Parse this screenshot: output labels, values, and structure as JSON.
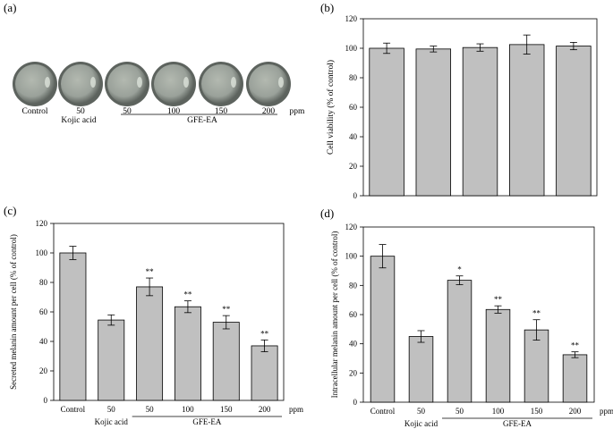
{
  "panels": {
    "a": {
      "label": "(a)",
      "dishes": [
        "Control",
        "50",
        "50",
        "100",
        "150",
        "200"
      ],
      "unit": "ppm",
      "group_kojic": "Kojic acid",
      "group_gfe": "GFE-EA",
      "colors": {
        "rim": "#5d635e",
        "center": "#b3b9b0",
        "highlight": "#e6ebe2"
      }
    }
  },
  "chart_data": [
    {
      "type": "bar",
      "panel_label": "(b)",
      "title": "",
      "xlabel": "",
      "ylabel": "Cell viability (% of control)",
      "categories": [
        "",
        "",
        "",
        "",
        ""
      ],
      "values": [
        100,
        99.5,
        100.5,
        102.5,
        101.5
      ],
      "errors": [
        3.5,
        2,
        2.5,
        6.5,
        2.5
      ],
      "significance": [
        "",
        "",
        "",
        "",
        ""
      ],
      "ylim": [
        0,
        120
      ],
      "yticks": [
        0,
        20,
        40,
        60,
        80,
        100,
        120
      ],
      "unit": "",
      "group_kojic": "",
      "group_gfe": "",
      "bar_color": "#c0c0c0"
    },
    {
      "type": "bar",
      "panel_label": "(c)",
      "title": "",
      "xlabel": "",
      "ylabel": "Secreted melanin amount per cell (% of control)",
      "categories": [
        "Control",
        "50",
        "50",
        "100",
        "150",
        "200"
      ],
      "values": [
        100,
        54.5,
        77,
        63.5,
        53,
        37
      ],
      "errors": [
        4.5,
        3.5,
        6,
        4,
        4.5,
        4
      ],
      "significance": [
        "",
        "",
        "**",
        "**",
        "**",
        "**"
      ],
      "ylim": [
        0,
        120
      ],
      "yticks": [
        0,
        20,
        40,
        60,
        80,
        100,
        120
      ],
      "unit": "ppm",
      "group_kojic": "Kojic acid",
      "group_gfe": "GFE-EA",
      "bar_color": "#c0c0c0"
    },
    {
      "type": "bar",
      "panel_label": "(d)",
      "title": "",
      "xlabel": "",
      "ylabel": "Intracellular melanin amount per cell (% of control)",
      "categories": [
        "Control",
        "50",
        "50",
        "100",
        "150",
        "200"
      ],
      "values": [
        100,
        45,
        83.5,
        63.5,
        49.5,
        32.5
      ],
      "errors": [
        8,
        4,
        3,
        2.5,
        7,
        2
      ],
      "significance": [
        "",
        "",
        "*",
        "**",
        "**",
        "**"
      ],
      "ylim": [
        0,
        120
      ],
      "yticks": [
        0,
        20,
        40,
        60,
        80,
        100,
        120
      ],
      "unit": "ppm",
      "group_kojic": "Kojic acid",
      "group_gfe": "GFE-EA",
      "bar_color": "#c0c0c0"
    }
  ]
}
